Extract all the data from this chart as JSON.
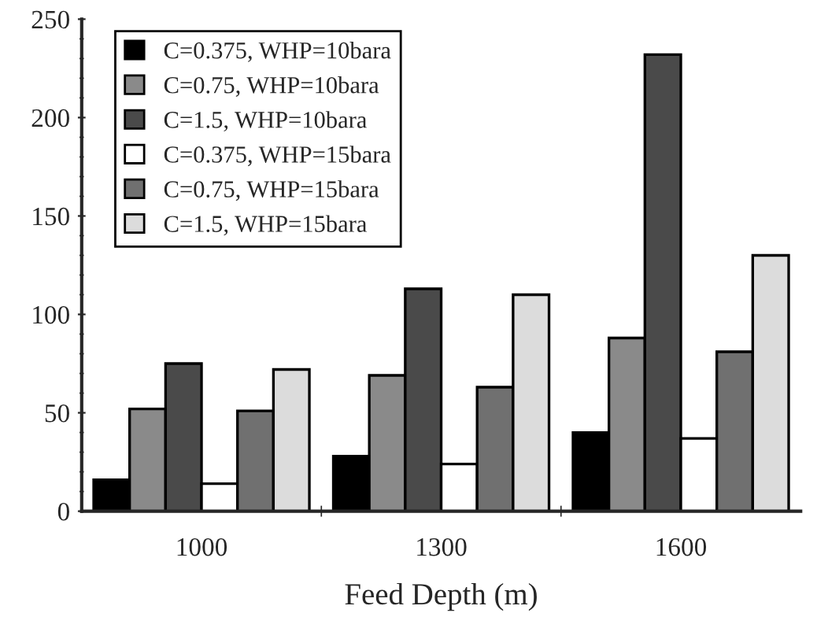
{
  "chart_data": {
    "type": "bar",
    "xlabel": "Feed Depth (m)",
    "categories": [
      "1000",
      "1300",
      "1600"
    ],
    "series": [
      {
        "name": "C=0.375, WHP=10bara",
        "color": "#000000",
        "values": [
          16,
          28,
          40
        ]
      },
      {
        "name": "C=0.75, WHP=10bara",
        "color": "#8a8a8a",
        "values": [
          52,
          69,
          88
        ]
      },
      {
        "name": "C=1.5, WHP=10bara",
        "color": "#4a4a4a",
        "values": [
          75,
          113,
          232
        ]
      },
      {
        "name": "C=0.375, WHP=15bara",
        "color": "#ffffff",
        "values": [
          14,
          24,
          37
        ]
      },
      {
        "name": "C=0.75, WHP=15bara",
        "color": "#707070",
        "values": [
          51,
          63,
          81
        ]
      },
      {
        "name": "C=1.5, WHP=15bara",
        "color": "#dcdcdc",
        "values": [
          72,
          110,
          130
        ]
      }
    ],
    "ylim": [
      0,
      250
    ],
    "yticks": [
      0,
      50,
      100,
      150,
      200,
      250
    ],
    "grid": false,
    "legend": "top left"
  }
}
